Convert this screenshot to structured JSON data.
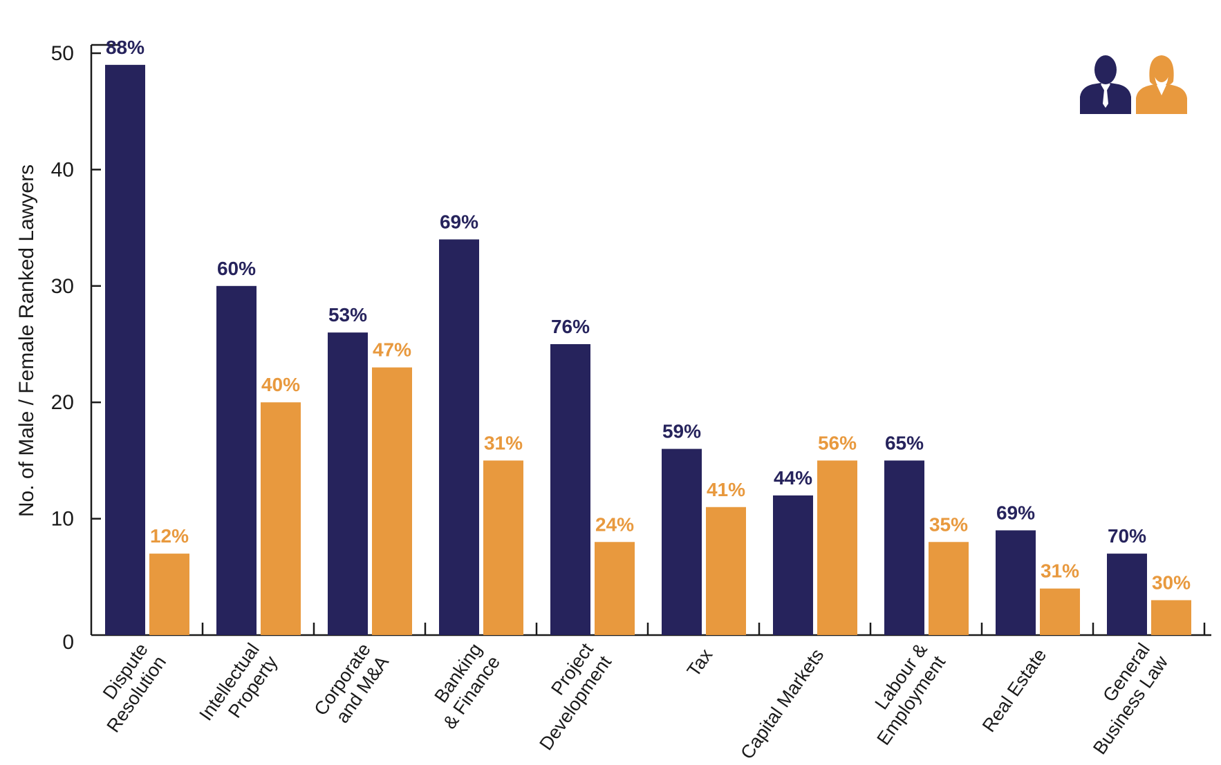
{
  "chart_data": {
    "type": "bar",
    "ylabel": "No. of Male / Female Ranked Lawyers",
    "xlabel": "",
    "ylim": [
      0,
      50
    ],
    "yticks": [
      0,
      10,
      20,
      30,
      40,
      50
    ],
    "grid": false,
    "legend": "top-right",
    "categories": [
      [
        "Dispute",
        "Resolution"
      ],
      [
        "Intellectual",
        "Property"
      ],
      [
        "Corporate",
        "and M&A"
      ],
      [
        "Banking",
        "& Finance"
      ],
      [
        "Project",
        "Development"
      ],
      [
        "Tax"
      ],
      [
        "Capital Markets"
      ],
      [
        "Labour &",
        "Employment"
      ],
      [
        "Real Estate"
      ],
      [
        "General",
        "Business Law"
      ]
    ],
    "series": [
      {
        "key": "male",
        "color": "#26235c",
        "icon": "male-person-icon",
        "values": [
          49,
          30,
          26,
          34,
          25,
          16,
          12,
          15,
          9,
          7
        ],
        "labels": [
          "88%",
          "60%",
          "53%",
          "69%",
          "76%",
          "59%",
          "44%",
          "65%",
          "69%",
          "70%"
        ]
      },
      {
        "key": "female",
        "color": "#e8993e",
        "icon": "female-person-icon",
        "values": [
          7,
          20,
          23,
          15,
          8,
          11,
          15,
          8,
          4,
          3
        ],
        "labels": [
          "12%",
          "40%",
          "47%",
          "31%",
          "24%",
          "41%",
          "56%",
          "35%",
          "31%",
          "30%"
        ]
      }
    ]
  }
}
